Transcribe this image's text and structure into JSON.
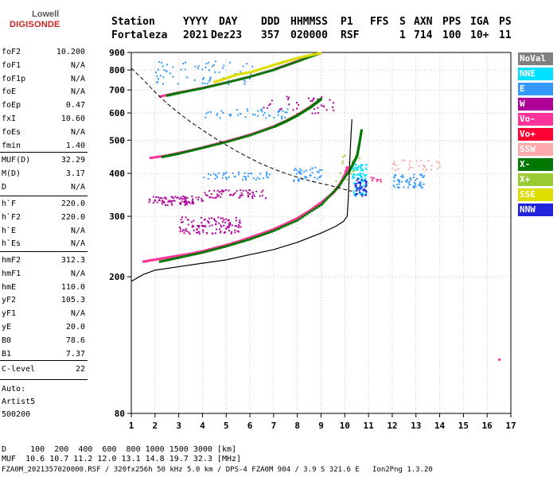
{
  "logo": {
    "line1": "Lowell",
    "line2": "DIGISONDE"
  },
  "header": {
    "labels": [
      "Station",
      "YYYY",
      "DAY",
      "DDD",
      "HHMMSS",
      "P1",
      "FFS",
      "S",
      "AXN",
      "PPS",
      "IGA",
      "PS"
    ],
    "values": [
      "Fortaleza",
      "2021",
      "Dez23",
      "357",
      "020000",
      "RSF",
      "",
      "1",
      "714",
      "100",
      "10+",
      "11"
    ]
  },
  "params_group1": [
    {
      "name": "foF2",
      "value": "10.200"
    },
    {
      "name": "foF1",
      "value": "N/A"
    },
    {
      "name": "foF1p",
      "value": "N/A"
    },
    {
      "name": "foE",
      "value": "N/A"
    },
    {
      "name": "foEp",
      "value": "0.47"
    },
    {
      "name": "fxI",
      "value": "10.60"
    },
    {
      "name": "foEs",
      "value": "N/A"
    },
    {
      "name": "fmin",
      "value": "1.40"
    }
  ],
  "params_group2": [
    {
      "name": "MUF(D)",
      "value": "32.29"
    },
    {
      "name": "M(D)",
      "value": "3.17"
    },
    {
      "name": "D",
      "value": "N/A"
    }
  ],
  "params_group3": [
    {
      "name": "h`F",
      "value": "220.0"
    },
    {
      "name": "h`F2",
      "value": "220.0"
    },
    {
      "name": "h`E",
      "value": "N/A"
    },
    {
      "name": "h`Es",
      "value": "N/A"
    }
  ],
  "params_group4": [
    {
      "name": "hmF2",
      "value": "312.3"
    },
    {
      "name": "hmF1",
      "value": "N/A"
    },
    {
      "name": "hmE",
      "value": "110.0"
    },
    {
      "name": "yF2",
      "value": "105.3"
    },
    {
      "name": "yF1",
      "value": "N/A"
    },
    {
      "name": "yE",
      "value": "20.0"
    },
    {
      "name": "B0",
      "value": "78.6"
    },
    {
      "name": "B1",
      "value": "7.37"
    }
  ],
  "params_group5": [
    {
      "name": "C-level",
      "value": "22"
    }
  ],
  "auto": {
    "line1": "Auto:",
    "line2": "Artist5",
    "line3": "500200"
  },
  "legend": [
    {
      "label": "NoVal",
      "color": "#808080"
    },
    {
      "label": "NNE",
      "color": "#00e0ff"
    },
    {
      "label": "E",
      "color": "#3399ff"
    },
    {
      "label": "W",
      "color": "#b0009a"
    },
    {
      "label": "Vo-",
      "color": "#ff3399"
    },
    {
      "label": "Vo+",
      "color": "#ff0033"
    },
    {
      "label": "SSW",
      "color": "#ffaaaa"
    },
    {
      "label": "X-",
      "color": "#007700"
    },
    {
      "label": "X+",
      "color": "#99cc33"
    },
    {
      "label": "SSE",
      "color": "#dddd00"
    },
    {
      "label": "NNW",
      "color": "#2222dd"
    }
  ],
  "footer": {
    "line1": "D     100  200  400  600  800 1000 1500 3000 [km]",
    "line2": "MUF  10.6 10.7 11.2 12.0 13.1 14.8 19.7 32.3 [MHz]",
    "line3": "FZA0M_2021357020000.RSF / 320fx256h 50 kHz 5.0 km / DPS-4 FZA0M 904 / 3.9 S 321.6 E   Ion2Png 1.3.20"
  },
  "chart_data": {
    "type": "scatter",
    "xlabel": "",
    "ylabel": "",
    "xlim": [
      1,
      17
    ],
    "ylim": [
      80,
      900
    ],
    "y_scale": "log",
    "x_ticks": [
      1,
      2,
      3,
      4,
      5,
      6,
      7,
      8,
      9,
      10,
      11,
      12,
      13,
      14,
      15,
      16,
      17
    ],
    "y_ticks": [
      80,
      200,
      300,
      400,
      500,
      600,
      700,
      800,
      900
    ],
    "grid": true,
    "legend_placement": "right",
    "traces": [
      {
        "name": "O-trace F2",
        "color": "#ff3399",
        "points": [
          [
            1.5,
            222
          ],
          [
            2,
            225
          ],
          [
            2.5,
            228
          ],
          [
            3,
            231
          ],
          [
            3.5,
            234
          ],
          [
            4,
            238
          ],
          [
            4.5,
            243
          ],
          [
            5,
            248
          ],
          [
            5.5,
            254
          ],
          [
            6,
            261
          ],
          [
            6.5,
            268
          ],
          [
            7,
            276
          ],
          [
            7.5,
            286
          ],
          [
            8,
            297
          ],
          [
            8.5,
            312
          ],
          [
            9,
            330
          ],
          [
            9.5,
            352
          ],
          [
            9.8,
            375
          ],
          [
            10,
            398
          ],
          [
            10.1,
            420
          ]
        ]
      },
      {
        "name": "X-trace F2",
        "color": "#007700",
        "points": [
          [
            2.2,
            222
          ],
          [
            3,
            228
          ],
          [
            4,
            236
          ],
          [
            5,
            246
          ],
          [
            6,
            258
          ],
          [
            7,
            273
          ],
          [
            8,
            293
          ],
          [
            9,
            325
          ],
          [
            9.7,
            365
          ],
          [
            10.2,
            410
          ],
          [
            10.5,
            450
          ],
          [
            10.6,
            490
          ],
          [
            10.7,
            540
          ]
        ]
      },
      {
        "name": "2nd hop",
        "color": "#ff3399",
        "points": [
          [
            1.8,
            445
          ],
          [
            2.5,
            452
          ],
          [
            3,
            460
          ],
          [
            3.5,
            468
          ],
          [
            4,
            477
          ],
          [
            4.5,
            487
          ],
          [
            5,
            497
          ],
          [
            5.5,
            508
          ],
          [
            6,
            520
          ],
          [
            6.5,
            534
          ],
          [
            7,
            550
          ],
          [
            7.5,
            570
          ],
          [
            8,
            594
          ],
          [
            8.5,
            625
          ],
          [
            9,
            660
          ]
        ]
      },
      {
        "name": "2nd hop X",
        "color": "#007700",
        "points": [
          [
            2.3,
            448
          ],
          [
            3,
            458
          ],
          [
            4,
            476
          ],
          [
            5,
            495
          ],
          [
            6,
            518
          ],
          [
            7,
            548
          ],
          [
            7.5,
            568
          ],
          [
            8,
            592
          ],
          [
            8.5,
            622
          ],
          [
            8.8,
            645
          ],
          [
            9,
            662
          ]
        ]
      },
      {
        "name": "3rd hop",
        "color": "#ff3399",
        "points": [
          [
            2.2,
            672
          ],
          [
            3,
            690
          ],
          [
            4,
            712
          ],
          [
            5,
            738
          ],
          [
            6,
            768
          ],
          [
            7,
            805
          ],
          [
            7.5,
            828
          ],
          [
            8,
            852
          ],
          [
            8.5,
            878
          ],
          [
            9,
            900
          ]
        ]
      },
      {
        "name": "3rd hop X",
        "color": "#007700",
        "points": [
          [
            2.5,
            676
          ],
          [
            3,
            688
          ],
          [
            4,
            710
          ],
          [
            5,
            737
          ],
          [
            6,
            767
          ],
          [
            7,
            803
          ],
          [
            8,
            850
          ],
          [
            9,
            900
          ]
        ]
      },
      {
        "name": "3rd hop SSE",
        "color": "#dddd00",
        "points": [
          [
            4.5,
            740
          ],
          [
            5,
            760
          ],
          [
            5.5,
            780
          ],
          [
            6,
            790
          ],
          [
            6.5,
            810
          ],
          [
            7,
            830
          ],
          [
            7.5,
            850
          ],
          [
            8,
            870
          ],
          [
            8.5,
            885
          ],
          [
            9,
            900
          ]
        ]
      }
    ],
    "clusters": [
      {
        "color": "#b0009a",
        "x": [
          1.7,
          4.0
        ],
        "y": [
          325,
          345
        ],
        "n": 80
      },
      {
        "color": "#b0009a",
        "x": [
          4.0,
          6.7
        ],
        "y": [
          340,
          360
        ],
        "n": 60
      },
      {
        "color": "#b0009a",
        "x": [
          3.0,
          5.6
        ],
        "y": [
          268,
          300
        ],
        "n": 110
      },
      {
        "color": "#3399ff",
        "x": [
          4.0,
          7.0
        ],
        "y": [
          385,
          405
        ],
        "n": 45
      },
      {
        "color": "#3399ff",
        "x": [
          3.8,
          7.6
        ],
        "y": [
          580,
          620
        ],
        "n": 45
      },
      {
        "color": "#3399ff",
        "x": [
          2.0,
          6.2
        ],
        "y": [
          730,
          860
        ],
        "n": 70
      },
      {
        "color": "#3399ff",
        "x": [
          7.8,
          9.0
        ],
        "y": [
          380,
          420
        ],
        "n": 40
      },
      {
        "color": "#00e0ff",
        "x": [
          10.3,
          10.9
        ],
        "y": [
          345,
          430
        ],
        "n": 90
      },
      {
        "color": "#2222dd",
        "x": [
          10.4,
          10.9
        ],
        "y": [
          345,
          390
        ],
        "n": 45
      },
      {
        "color": "#3399ff",
        "x": [
          12.0,
          13.4
        ],
        "y": [
          365,
          400
        ],
        "n": 60
      },
      {
        "color": "#ffaaaa",
        "x": [
          11.8,
          14.0
        ],
        "y": [
          410,
          440
        ],
        "n": 35
      },
      {
        "color": "#b0009a",
        "x": [
          6.5,
          9.5
        ],
        "y": [
          600,
          680
        ],
        "n": 40
      },
      {
        "color": "#99cc33",
        "x": [
          9.6,
          10.6
        ],
        "y": [
          380,
          460
        ],
        "n": 25
      },
      {
        "color": "#ff3399",
        "x": [
          11.0,
          11.5
        ],
        "y": [
          380,
          395
        ],
        "n": 10
      }
    ],
    "profile_curve": {
      "color": "#000000",
      "points": [
        [
          1,
          194
        ],
        [
          1.5,
          203
        ],
        [
          2,
          209
        ],
        [
          3,
          214
        ],
        [
          4,
          219
        ],
        [
          5,
          224
        ],
        [
          6,
          232
        ],
        [
          7,
          240
        ],
        [
          8,
          252
        ],
        [
          9,
          268
        ],
        [
          9.6,
          280
        ],
        [
          9.95,
          290
        ],
        [
          10.1,
          300
        ],
        [
          10.15,
          340
        ],
        [
          10.2,
          420
        ],
        [
          10.25,
          500
        ],
        [
          10.3,
          575
        ]
      ]
    },
    "dashed_curve": {
      "color": "#000000",
      "points": [
        [
          1,
          810
        ],
        [
          1.5,
          750
        ],
        [
          2,
          690
        ],
        [
          2.5,
          640
        ],
        [
          3,
          600
        ],
        [
          3.5,
          565
        ],
        [
          4,
          535
        ],
        [
          4.5,
          508
        ],
        [
          5,
          484
        ],
        [
          5.5,
          462
        ],
        [
          6,
          443
        ],
        [
          6.5,
          426
        ],
        [
          7,
          412
        ],
        [
          7.5,
          400
        ],
        [
          8,
          390
        ],
        [
          8.5,
          381
        ],
        [
          9,
          374
        ],
        [
          9.5,
          367
        ],
        [
          10,
          359
        ],
        [
          10.3,
          355
        ]
      ]
    },
    "isolated_points": [
      [
        16.5,
        115
      ]
    ]
  }
}
